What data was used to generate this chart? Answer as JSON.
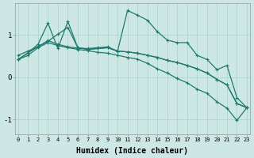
{
  "background_color": "#cde8e4",
  "grid_color": "#aed4ce",
  "line_color": "#1e7a6e",
  "xlabel": "Humidex (Indice chaleur)",
  "xlabel_fontsize": 7,
  "xtick_labels": [
    "0",
    "1",
    "2",
    "3",
    "4",
    "5",
    "6",
    "7",
    "8",
    "9",
    "10",
    "11",
    "12",
    "13",
    "14",
    "15",
    "16",
    "17",
    "18",
    "19",
    "20",
    "21",
    "22",
    "23"
  ],
  "ytick_labels": [
    "-1",
    "0",
    "1"
  ],
  "ylim": [
    -1.35,
    1.75
  ],
  "xlim": [
    -0.3,
    23.3
  ],
  "series": [
    {
      "x": [
        0,
        1,
        2,
        3,
        4,
        5,
        6,
        7,
        8,
        9,
        10,
        11,
        12,
        13,
        14,
        15,
        16,
        17,
        18,
        19,
        20,
        21,
        22,
        23
      ],
      "y": [
        0.52,
        0.62,
        0.72,
        0.87,
        0.78,
        0.72,
        0.69,
        0.68,
        0.7,
        0.72,
        0.62,
        1.58,
        1.47,
        1.35,
        1.08,
        0.88,
        0.82,
        0.82,
        0.52,
        0.42,
        0.18,
        0.28,
        -0.48,
        -0.72
      ]
    },
    {
      "x": [
        0,
        1,
        2,
        3,
        4,
        5,
        6,
        7,
        8,
        9,
        10,
        11,
        12,
        13,
        14,
        15,
        16,
        17,
        18,
        19,
        20,
        21,
        22,
        23
      ],
      "y": [
        0.42,
        0.58,
        0.78,
        1.28,
        0.68,
        1.32,
        0.7,
        0.66,
        0.68,
        0.7,
        0.62,
        0.6,
        0.57,
        0.52,
        0.47,
        0.4,
        0.35,
        0.28,
        0.2,
        0.1,
        -0.05,
        -0.18,
        -0.62,
        -0.72
      ]
    },
    {
      "x": [
        0,
        1,
        2,
        3,
        4,
        5,
        6,
        7,
        8,
        9,
        10,
        11,
        12,
        13,
        14,
        15,
        16,
        17,
        18,
        19,
        20,
        21,
        22,
        23
      ],
      "y": [
        0.42,
        0.58,
        0.73,
        0.85,
        1.02,
        1.18,
        0.7,
        0.66,
        0.68,
        0.7,
        0.62,
        0.6,
        0.57,
        0.52,
        0.47,
        0.4,
        0.35,
        0.28,
        0.2,
        0.1,
        -0.05,
        -0.18,
        -0.62,
        -0.72
      ]
    },
    {
      "x": [
        0,
        1,
        2,
        3,
        4,
        5,
        6,
        7,
        8,
        9,
        10,
        11,
        12,
        13,
        14,
        15,
        16,
        17,
        18,
        19,
        20,
        21,
        22,
        23
      ],
      "y": [
        0.42,
        0.52,
        0.7,
        0.82,
        0.75,
        0.7,
        0.66,
        0.63,
        0.59,
        0.57,
        0.52,
        0.47,
        0.43,
        0.33,
        0.2,
        0.1,
        -0.03,
        -0.13,
        -0.28,
        -0.38,
        -0.58,
        -0.73,
        -1.02,
        -0.72
      ]
    }
  ],
  "marker": "+",
  "markersize": 3.5,
  "linewidth": 0.9
}
